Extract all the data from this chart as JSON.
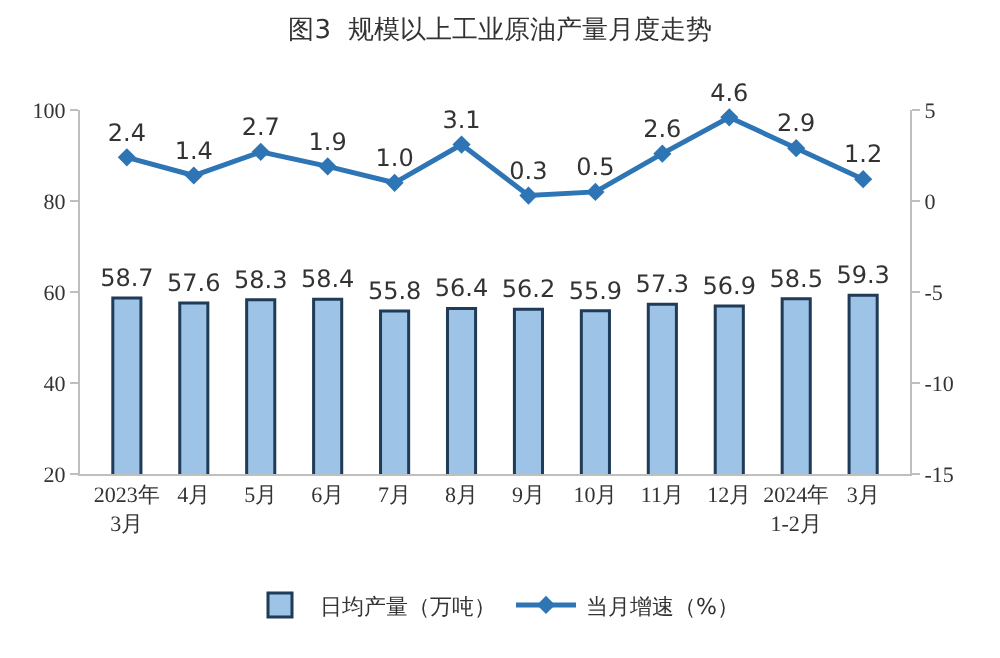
{
  "chart_data": {
    "type": "bar",
    "title": "图3  规模以上工业原油产量月度走势",
    "categories": [
      "2023年\n3月",
      "4月",
      "5月",
      "6月",
      "7月",
      "8月",
      "9月",
      "10月",
      "11月",
      "12月",
      "2024年\n1-2月",
      "3月"
    ],
    "series": [
      {
        "name": "日均产量（万吨）",
        "color": "#9dc3e6",
        "values": [
          58.7,
          57.6,
          58.3,
          58.4,
          55.8,
          56.4,
          56.2,
          55.9,
          57.3,
          56.9,
          58.5,
          59.3
        ]
      },
      {
        "name": "当月增速（%）",
        "type": "line",
        "axis": "y2",
        "color": "#2e75b6",
        "marker": "diamond",
        "values": [
          2.4,
          1.4,
          2.7,
          1.9,
          1.0,
          3.1,
          0.3,
          0.5,
          2.6,
          4.6,
          2.9,
          1.2
        ],
        "value_labels": [
          "2.4",
          "1.4",
          "2.7",
          "1.9",
          "1.0",
          "3.1",
          "0.3",
          "0.5",
          "2.6",
          "4.6",
          "2.9",
          "1.2"
        ]
      }
    ],
    "ylim": [
      20,
      100
    ],
    "yticks": [
      20,
      40,
      60,
      80,
      100
    ],
    "y2lim": [
      -15,
      5
    ],
    "y2ticks": [
      -15,
      -10,
      -5,
      0,
      5
    ],
    "data_labels": true,
    "legend": "bottom"
  }
}
